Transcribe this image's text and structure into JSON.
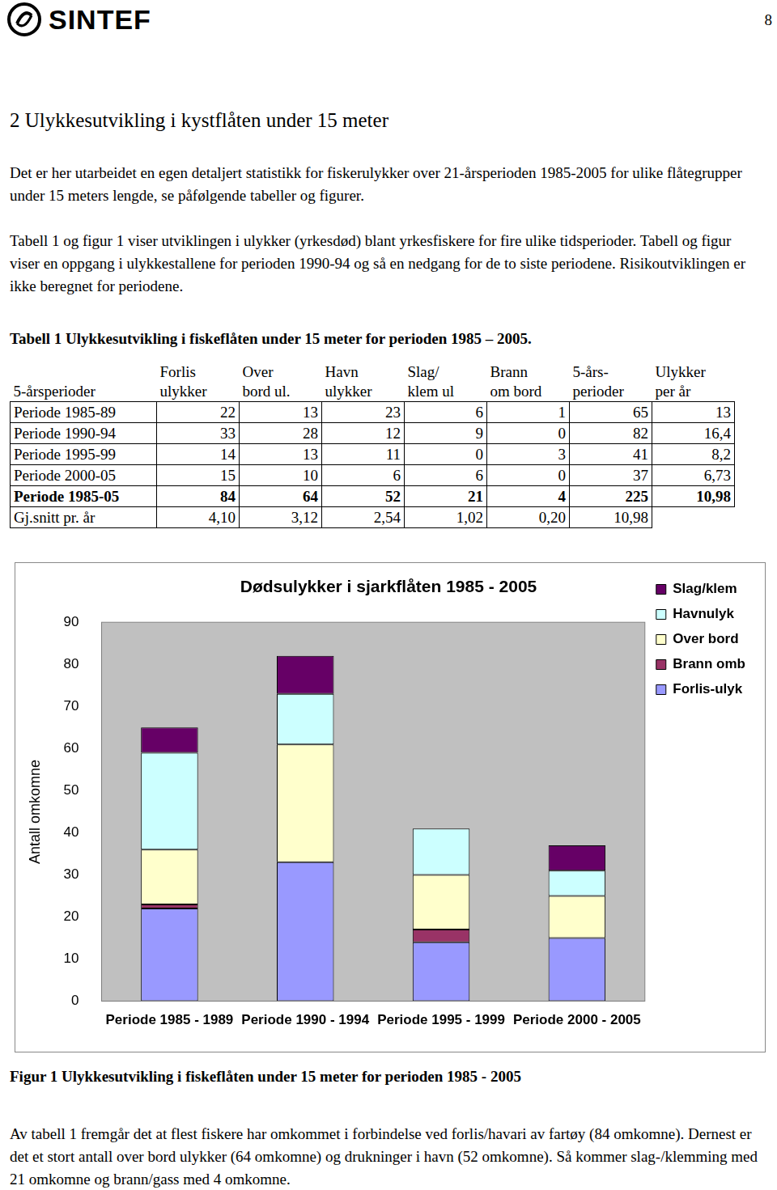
{
  "header": {
    "logo": "SINTEF",
    "page_number": "8"
  },
  "heading": "2  Ulykkesutvikling i kystflåten under 15 meter",
  "paragraphs": [
    "Det er her utarbeidet en egen detaljert statistikk for fiskerulykker over 21-årsperioden 1985-2005 for ulike flåtegrupper under 15 meters lengde, se påfølgende tabeller og figurer.",
    "Tabell 1 og figur 1 viser utviklingen i ulykker (yrkesdød) blant yrkesfiskere for fire ulike tidsperioder. Tabell og figur viser en oppgang i ulykkestallene for perioden 1990-94 og så en nedgang for de to siste periodene. Risikoutviklingen er ikke beregnet for periodene."
  ],
  "table": {
    "caption": "Tabell 1 Ulykkesutvikling i fiskeflåten under 15 meter for perioden 1985 – 2005.",
    "header": [
      [
        "5-årsperioder"
      ],
      [
        "Forlis",
        "ulykker"
      ],
      [
        "Over",
        "bord ul."
      ],
      [
        "Havn",
        "ulykker"
      ],
      [
        "Slag/",
        "klem ul"
      ],
      [
        "Brann",
        "om bord"
      ],
      [
        "5-års-",
        "perioder"
      ],
      [
        "Ulykker",
        "per år"
      ]
    ],
    "rows": [
      [
        "Periode 1985-89",
        "22",
        "13",
        "23",
        "6",
        "1",
        "65",
        "13"
      ],
      [
        "Periode 1990-94",
        "33",
        "28",
        "12",
        "9",
        "0",
        "82",
        "16,4"
      ],
      [
        "Periode 1995-99",
        "14",
        "13",
        "11",
        "0",
        "3",
        "41",
        "8,2"
      ],
      [
        "Periode 2000-05",
        "15",
        "10",
        "6",
        "6",
        "0",
        "37",
        "6,73"
      ],
      [
        "Periode 1985-05",
        "84",
        "64",
        "52",
        "21",
        "4",
        "225",
        "10,98"
      ],
      [
        "Gj.snitt pr. år",
        "4,10",
        "3,12",
        "2,54",
        "1,02",
        "0,20",
        "10,98"
      ]
    ]
  },
  "chart_data": {
    "type": "bar",
    "title": "Dødsulykker i sjarkflåten 1985 - 2005",
    "y_label": "Antall omkomne",
    "categories": [
      "Periode 1985 - 1989",
      "Periode 1990 - 1994",
      "Periode 1995 - 1999",
      "Periode 2000 - 2005"
    ],
    "series": [
      {
        "name": "Forlis-ulyk",
        "color": "#9999ff",
        "values": [
          22,
          33,
          14,
          15
        ]
      },
      {
        "name": "Brann omb",
        "color": "#993366",
        "values": [
          1,
          0,
          3,
          0
        ]
      },
      {
        "name": "Over bord",
        "color": "#ffffcc",
        "values": [
          13,
          28,
          13,
          10
        ]
      },
      {
        "name": "Havnulyk",
        "color": "#ccffff",
        "values": [
          23,
          12,
          11,
          6
        ]
      },
      {
        "name": "Slag/klem",
        "color": "#660066",
        "values": [
          6,
          9,
          0,
          6
        ]
      }
    ],
    "stacked": true,
    "ylim": [
      0,
      90
    ],
    "yticks": [
      0,
      10,
      20,
      30,
      40,
      50,
      60,
      70,
      80,
      90
    ],
    "grid": false,
    "legend": "right"
  },
  "figure_caption": "Figur 1 Ulykkesutvikling i fiskeflåten under 15 meter for perioden 1985 - 2005",
  "closing": "Av tabell 1 fremgår det at flest fiskere har omkommet i forbindelse ved forlis/havari av fartøy (84 omkomne). Dernest er det et stort antall over bord ulykker (64 omkomne) og drukninger i havn (52 omkomne). Så kommer slag-/klemming med 21 omkomne og brann/gass med 4 omkomne."
}
